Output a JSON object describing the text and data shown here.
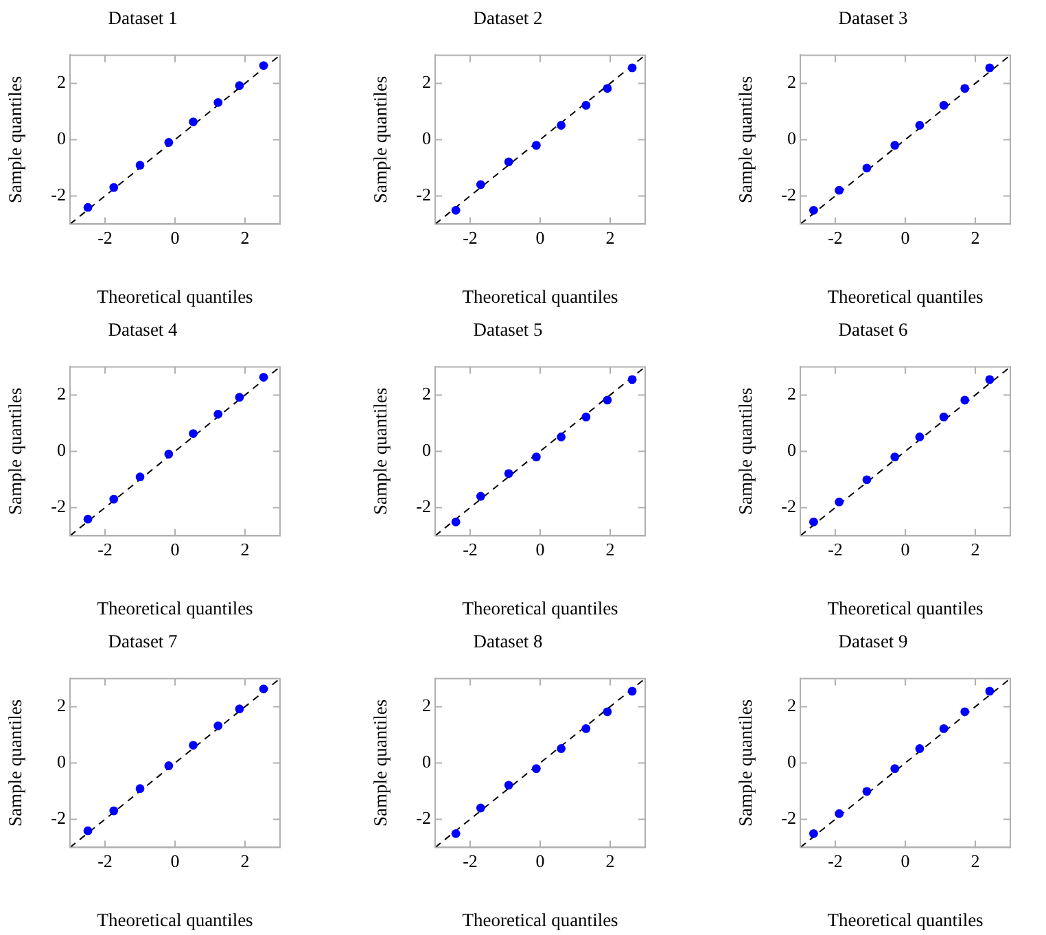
{
  "chart_data": [
    {
      "type": "scatter",
      "title": "Dataset 1",
      "xlabel": "Theoretical quantiles",
      "ylabel": "Sample quantiles",
      "xlim": [
        -3,
        3
      ],
      "ylim": [
        -3,
        3
      ],
      "xticks": [
        -2,
        0,
        2
      ],
      "yticks": [
        -2,
        0,
        2
      ],
      "marker": "circle",
      "series": [
        {
          "type": "scatter",
          "color": "#0000ff",
          "x": [
            -2.49,
            -1.75,
            -1.0,
            -0.18,
            0.52,
            1.23,
            1.84,
            2.53
          ],
          "values": [
            -2.41,
            -1.7,
            -0.91,
            -0.1,
            0.63,
            1.32,
            1.92,
            2.63
          ]
        },
        {
          "type": "line",
          "color": "#000000",
          "line_style": "dashed",
          "marker": "none",
          "x": [
            -3,
            3
          ],
          "values": [
            -3,
            3
          ]
        }
      ]
    },
    {
      "type": "scatter",
      "title": "Dataset 2",
      "xlabel": "Theoretical quantiles",
      "ylabel": "Sample quantiles",
      "xlim": [
        -3,
        3
      ],
      "ylim": [
        -3,
        3
      ],
      "xticks": [
        -2,
        0,
        2
      ],
      "yticks": [
        -2,
        0,
        2
      ],
      "marker": "circle",
      "series": [
        {
          "type": "scatter",
          "color": "#0000ff",
          "x": [
            -2.41,
            -1.7,
            -0.9,
            -0.11,
            0.6,
            1.31,
            1.92,
            2.63
          ],
          "values": [
            -2.51,
            -1.6,
            -0.79,
            -0.2,
            0.51,
            1.22,
            1.82,
            2.55
          ]
        },
        {
          "type": "line",
          "color": "#000000",
          "line_style": "dashed",
          "marker": "none",
          "x": [
            -3,
            3
          ],
          "values": [
            -3,
            3
          ]
        }
      ]
    },
    {
      "type": "scatter",
      "title": "Dataset 3",
      "xlabel": "Theoretical quantiles",
      "ylabel": "Sample quantiles",
      "xlim": [
        -3,
        3
      ],
      "ylim": [
        -3,
        3
      ],
      "xticks": [
        -2,
        0,
        2
      ],
      "yticks": [
        -2,
        0,
        2
      ],
      "marker": "circle",
      "series": [
        {
          "type": "scatter",
          "color": "#0000ff",
          "x": [
            -2.62,
            -1.89,
            -1.1,
            -0.3,
            0.41,
            1.1,
            1.7,
            2.41
          ],
          "values": [
            -2.51,
            -1.8,
            -1.01,
            -0.2,
            0.51,
            1.22,
            1.82,
            2.55
          ]
        },
        {
          "type": "line",
          "color": "#000000",
          "line_style": "dashed",
          "marker": "none",
          "x": [
            -3,
            3
          ],
          "values": [
            -3,
            3
          ]
        }
      ]
    },
    {
      "type": "scatter",
      "title": "Dataset 4",
      "xlabel": "Theoretical quantiles",
      "ylabel": "Sample quantiles",
      "xlim": [
        -3,
        3
      ],
      "ylim": [
        -3,
        3
      ],
      "xticks": [
        -2,
        0,
        2
      ],
      "yticks": [
        -2,
        0,
        2
      ],
      "marker": "circle",
      "series": [
        {
          "type": "scatter",
          "color": "#0000ff",
          "x": [
            -2.49,
            -1.75,
            -1.0,
            -0.18,
            0.52,
            1.23,
            1.84,
            2.53
          ],
          "values": [
            -2.41,
            -1.7,
            -0.91,
            -0.1,
            0.63,
            1.32,
            1.92,
            2.63
          ]
        },
        {
          "type": "line",
          "color": "#000000",
          "line_style": "dashed",
          "marker": "none",
          "x": [
            -3,
            3
          ],
          "values": [
            -3,
            3
          ]
        }
      ]
    },
    {
      "type": "scatter",
      "title": "Dataset 5",
      "xlabel": "Theoretical quantiles",
      "ylabel": "Sample quantiles",
      "xlim": [
        -3,
        3
      ],
      "ylim": [
        -3,
        3
      ],
      "xticks": [
        -2,
        0,
        2
      ],
      "yticks": [
        -2,
        0,
        2
      ],
      "marker": "circle",
      "series": [
        {
          "type": "scatter",
          "color": "#0000ff",
          "x": [
            -2.41,
            -1.7,
            -0.9,
            -0.11,
            0.6,
            1.31,
            1.92,
            2.63
          ],
          "values": [
            -2.51,
            -1.6,
            -0.79,
            -0.2,
            0.51,
            1.22,
            1.82,
            2.55
          ]
        },
        {
          "type": "line",
          "color": "#000000",
          "line_style": "dashed",
          "marker": "none",
          "x": [
            -3,
            3
          ],
          "values": [
            -3,
            3
          ]
        }
      ]
    },
    {
      "type": "scatter",
      "title": "Dataset 6",
      "xlabel": "Theoretical quantiles",
      "ylabel": "Sample quantiles",
      "xlim": [
        -3,
        3
      ],
      "ylim": [
        -3,
        3
      ],
      "xticks": [
        -2,
        0,
        2
      ],
      "yticks": [
        -2,
        0,
        2
      ],
      "marker": "circle",
      "series": [
        {
          "type": "scatter",
          "color": "#0000ff",
          "x": [
            -2.62,
            -1.89,
            -1.1,
            -0.3,
            0.41,
            1.1,
            1.7,
            2.41
          ],
          "values": [
            -2.51,
            -1.8,
            -1.01,
            -0.2,
            0.51,
            1.22,
            1.82,
            2.55
          ]
        },
        {
          "type": "line",
          "color": "#000000",
          "line_style": "dashed",
          "marker": "none",
          "x": [
            -3,
            3
          ],
          "values": [
            -3,
            3
          ]
        }
      ]
    },
    {
      "type": "scatter",
      "title": "Dataset 7",
      "xlabel": "Theoretical quantiles",
      "ylabel": "Sample quantiles",
      "xlim": [
        -3,
        3
      ],
      "ylim": [
        -3,
        3
      ],
      "xticks": [
        -2,
        0,
        2
      ],
      "yticks": [
        -2,
        0,
        2
      ],
      "marker": "circle",
      "series": [
        {
          "type": "scatter",
          "color": "#0000ff",
          "x": [
            -2.49,
            -1.75,
            -1.0,
            -0.18,
            0.52,
            1.23,
            1.84,
            2.53
          ],
          "values": [
            -2.41,
            -1.7,
            -0.91,
            -0.1,
            0.63,
            1.32,
            1.92,
            2.63
          ]
        },
        {
          "type": "line",
          "color": "#000000",
          "line_style": "dashed",
          "marker": "none",
          "x": [
            -3,
            3
          ],
          "values": [
            -3,
            3
          ]
        }
      ]
    },
    {
      "type": "scatter",
      "title": "Dataset 8",
      "xlabel": "Theoretical quantiles",
      "ylabel": "Sample quantiles",
      "xlim": [
        -3,
        3
      ],
      "ylim": [
        -3,
        3
      ],
      "xticks": [
        -2,
        0,
        2
      ],
      "yticks": [
        -2,
        0,
        2
      ],
      "marker": "circle",
      "series": [
        {
          "type": "scatter",
          "color": "#0000ff",
          "x": [
            -2.41,
            -1.7,
            -0.9,
            -0.11,
            0.6,
            1.31,
            1.92,
            2.63
          ],
          "values": [
            -2.51,
            -1.6,
            -0.79,
            -0.2,
            0.51,
            1.22,
            1.82,
            2.55
          ]
        },
        {
          "type": "line",
          "color": "#000000",
          "line_style": "dashed",
          "marker": "none",
          "x": [
            -3,
            3
          ],
          "values": [
            -3,
            3
          ]
        }
      ]
    },
    {
      "type": "scatter",
      "title": "Dataset 9",
      "xlabel": "Theoretical quantiles",
      "ylabel": "Sample quantiles",
      "xlim": [
        -3,
        3
      ],
      "ylim": [
        -3,
        3
      ],
      "xticks": [
        -2,
        0,
        2
      ],
      "yticks": [
        -2,
        0,
        2
      ],
      "marker": "circle",
      "series": [
        {
          "type": "scatter",
          "color": "#0000ff",
          "x": [
            -2.62,
            -1.89,
            -1.1,
            -0.3,
            0.41,
            1.1,
            1.7,
            2.41
          ],
          "values": [
            -2.51,
            -1.8,
            -1.01,
            -0.2,
            0.51,
            1.22,
            1.82,
            2.55
          ]
        },
        {
          "type": "line",
          "color": "#000000",
          "line_style": "dashed",
          "marker": "none",
          "x": [
            -3,
            3
          ],
          "values": [
            -3,
            3
          ]
        }
      ]
    }
  ]
}
